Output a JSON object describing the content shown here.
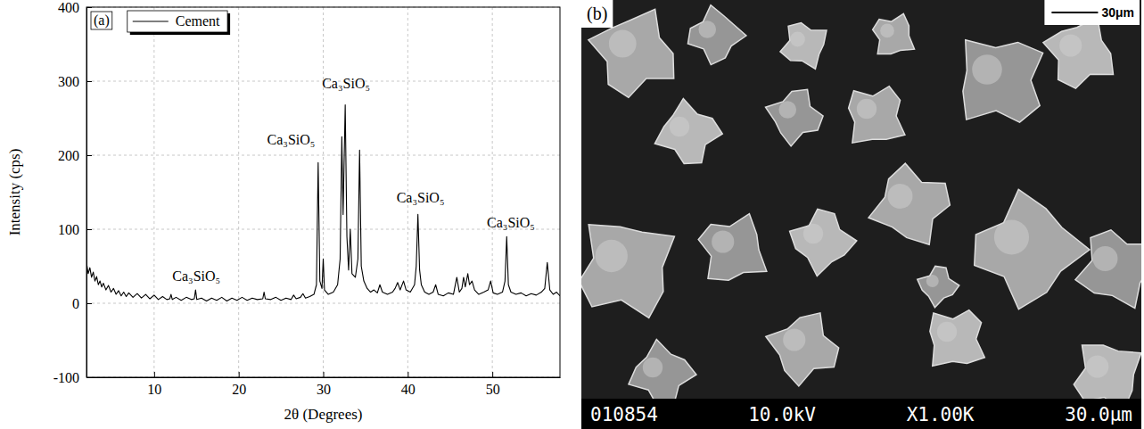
{
  "chart_data": {
    "type": "line",
    "panel_label": "(a)",
    "x_label": "2θ (Degrees)",
    "y_label": "Intensity (cps)",
    "x": [
      2.0,
      2.2,
      2.4,
      2.6,
      2.8,
      3.0,
      3.2,
      3.4,
      3.6,
      3.8,
      4.0,
      4.3,
      4.6,
      4.9,
      5.2,
      5.5,
      5.8,
      6.1,
      6.4,
      6.7,
      7.0,
      7.5,
      8.0,
      8.5,
      9.0,
      9.5,
      10.0,
      10.5,
      11.0,
      11.5,
      11.85,
      12.0,
      12.15,
      12.6,
      13.2,
      13.8,
      14.4,
      14.75,
      14.9,
      15.05,
      15.6,
      16.2,
      16.8,
      17.4,
      18.0,
      18.6,
      19.2,
      19.8,
      20.4,
      21.0,
      21.6,
      22.2,
      22.85,
      23.0,
      23.15,
      23.8,
      24.4,
      25.0,
      25.6,
      26.2,
      26.5,
      26.8,
      27.3,
      27.6,
      27.9,
      28.4,
      28.9,
      29.2,
      29.4,
      29.6,
      29.85,
      30.0,
      30.15,
      30.6,
      31.2,
      31.7,
      32.0,
      32.2,
      32.35,
      32.6,
      32.8,
      33.0,
      33.2,
      33.4,
      33.8,
      34.1,
      34.3,
      34.5,
      34.8,
      35.2,
      35.6,
      36.0,
      36.4,
      36.7,
      37.0,
      37.6,
      38.2,
      38.5,
      38.8,
      39.1,
      39.5,
      39.8,
      40.3,
      40.8,
      41.0,
      41.2,
      41.4,
      41.6,
      42.0,
      42.5,
      43.0,
      43.3,
      43.6,
      44.2,
      44.8,
      45.4,
      45.8,
      46.1,
      46.4,
      46.6,
      46.8,
      47.1,
      47.3,
      47.6,
      47.9,
      48.4,
      49.0,
      49.5,
      49.8,
      50.1,
      50.6,
      51.2,
      51.5,
      51.7,
      51.9,
      52.2,
      52.8,
      53.4,
      54.0,
      54.6,
      55.2,
      55.8,
      56.2,
      56.5,
      56.8,
      57.2,
      57.6,
      58.0
    ],
    "series": [
      {
        "name": "Cement",
        "color": "#000000",
        "values": [
          55,
          40,
          48,
          35,
          42,
          30,
          36,
          25,
          30,
          22,
          27,
          18,
          24,
          15,
          20,
          12,
          17,
          10,
          15,
          9,
          14,
          8,
          13,
          7,
          12,
          6,
          11,
          5,
          9,
          5,
          6,
          12,
          5,
          8,
          4,
          8,
          5,
          6,
          18,
          5,
          7,
          3,
          7,
          4,
          8,
          3,
          7,
          4,
          8,
          4,
          7,
          5,
          6,
          15,
          6,
          5,
          8,
          4,
          7,
          5,
          11,
          6,
          8,
          13,
          7,
          9,
          12,
          25,
          190,
          30,
          20,
          60,
          18,
          12,
          15,
          25,
          60,
          225,
          120,
          268,
          90,
          45,
          100,
          40,
          35,
          60,
          207,
          50,
          30,
          20,
          15,
          18,
          14,
          25,
          15,
          12,
          15,
          20,
          28,
          18,
          30,
          18,
          15,
          25,
          50,
          120,
          45,
          25,
          15,
          12,
          15,
          25,
          12,
          10,
          14,
          12,
          35,
          15,
          20,
          35,
          22,
          40,
          25,
          30,
          18,
          12,
          15,
          18,
          30,
          14,
          12,
          15,
          30,
          90,
          25,
          15,
          12,
          14,
          10,
          13,
          11,
          15,
          20,
          55,
          18,
          12,
          15,
          10
        ]
      }
    ],
    "xlim": [
      2,
      58
    ],
    "xticks": [
      10,
      20,
      30,
      40,
      50
    ],
    "ylim": [
      -100,
      400
    ],
    "yticks": [
      -100,
      0,
      100,
      200,
      300,
      400
    ],
    "grid": true,
    "legend": "upper left",
    "annotations": [
      {
        "text": "Ca₃SiO₅",
        "x": 15.0,
        "y": 30
      },
      {
        "text": "Ca₃SiO₅",
        "x": 26.2,
        "y": 214
      },
      {
        "text": "Ca₃SiO₅",
        "x": 32.7,
        "y": 290
      },
      {
        "text": "Ca₃SiO₅",
        "x": 41.5,
        "y": 136
      },
      {
        "text": "Ca₃SiO₅",
        "x": 52.2,
        "y": 102
      }
    ]
  },
  "image_panel": {
    "panel_label": "(b)",
    "scale_bar": "30μm",
    "info_bar": [
      "010854",
      "10.0kV",
      "X1.00K",
      "30.0μm"
    ]
  }
}
